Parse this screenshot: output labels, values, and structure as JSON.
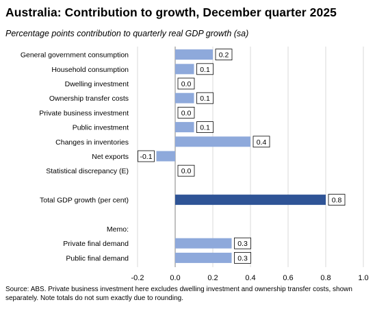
{
  "title": "Australia:  Contribution  to growth,  December quarter  2025",
  "subtitle": "Percentage points contribution to quarterly real GDP growth (sa)",
  "source": "Source: ABS. Private business investment here excludes dwelling investment and ownership transfer costs, shown separately.  Note totals do not sum exactly due to rounding.",
  "colors": {
    "component": "#8EA9DB",
    "total": "#2F5496",
    "grid": "#D9D9D9",
    "axis": "#808080"
  },
  "chart_data": {
    "type": "bar",
    "orientation": "horizontal",
    "title": "Australia:  Contribution  to growth,  December quarter  2025",
    "subtitle": "Percentage points contribution to quarterly real GDP growth (sa)",
    "xlim": [
      -0.2,
      1.0
    ],
    "xticks": [
      "-0.2",
      "0.0",
      "0.2",
      "0.4",
      "0.6",
      "0.8",
      "1.0"
    ],
    "grid": "vertical",
    "legend": "none",
    "rows": [
      {
        "label": "General government consumption",
        "value": 0.2,
        "display": "0.2",
        "kind": "component"
      },
      {
        "label": "Household consumption",
        "value": 0.1,
        "display": "0.1",
        "kind": "component"
      },
      {
        "label": "Dwelling investment",
        "value": 0.0,
        "display": "0.0",
        "kind": "component"
      },
      {
        "label": "Ownership transfer costs",
        "value": 0.1,
        "display": "0.1",
        "kind": "component"
      },
      {
        "label": "Private business investment",
        "value": 0.0,
        "display": "0.0",
        "kind": "component"
      },
      {
        "label": "Public investment",
        "value": 0.1,
        "display": "0.1",
        "kind": "component"
      },
      {
        "label": "Changes in inventories",
        "value": 0.4,
        "display": "0.4",
        "kind": "component"
      },
      {
        "label": "Net exports",
        "value": -0.1,
        "display": "-0.1",
        "kind": "component"
      },
      {
        "label": "Statistical discrepancy (E)",
        "value": 0.0,
        "display": "0.0",
        "kind": "component"
      },
      {
        "label": "",
        "value": null,
        "display": null,
        "kind": "blank"
      },
      {
        "label": "Total GDP growth (per cent)",
        "value": 0.8,
        "display": "0.8",
        "kind": "total"
      },
      {
        "label": "",
        "value": null,
        "display": null,
        "kind": "blank"
      },
      {
        "label": "Memo:",
        "value": null,
        "display": null,
        "kind": "heading"
      },
      {
        "label": "Private final demand",
        "value": 0.3,
        "display": "0.3",
        "kind": "component"
      },
      {
        "label": "Public final demand",
        "value": 0.3,
        "display": "0.3",
        "kind": "component"
      }
    ]
  }
}
